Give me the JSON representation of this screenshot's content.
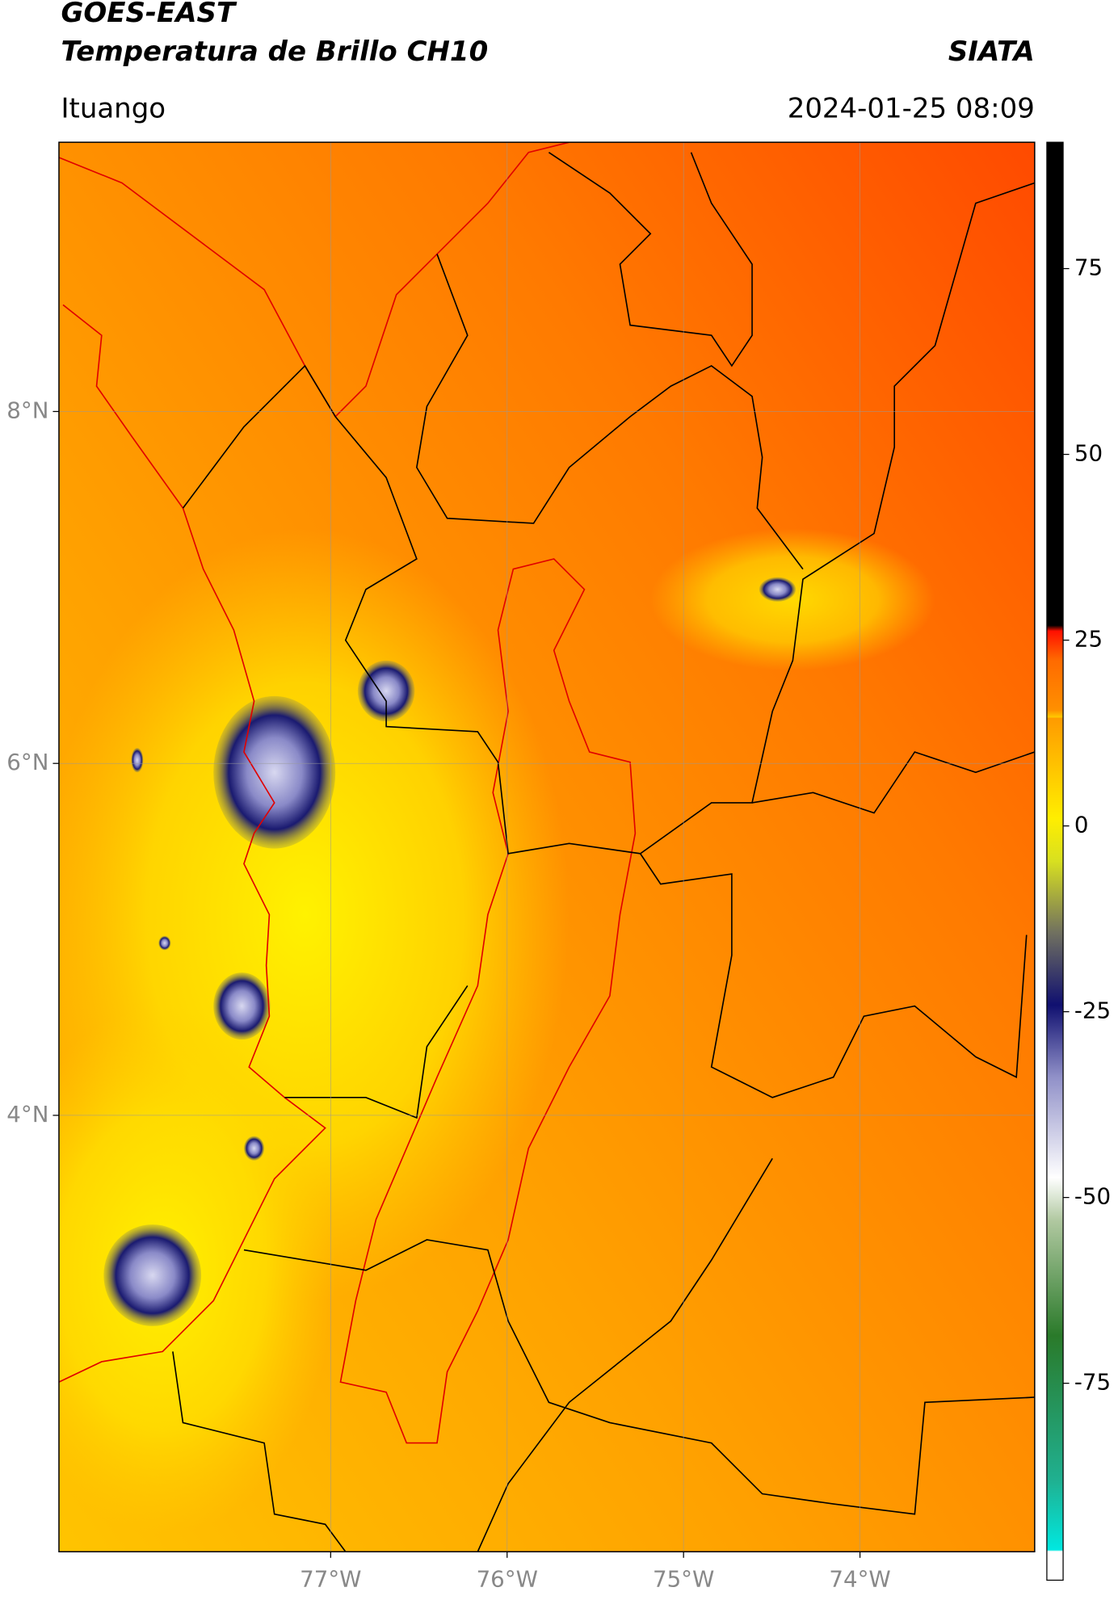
{
  "header": {
    "title": "GOES-EAST",
    "subtitle": "Temperatura de Brillo CH10",
    "source": "SIATA",
    "location": "Ituango",
    "datetime": "2024-01-25 08:09"
  },
  "map": {
    "lonlim": [
      -78.54,
      -73.01
    ],
    "latlim": [
      1.52,
      9.53
    ],
    "lon_ticks": [
      {
        "value": -77,
        "label": "77°W"
      },
      {
        "value": -76,
        "label": "76°W"
      },
      {
        "value": -75,
        "label": "75°W"
      },
      {
        "value": -74,
        "label": "74°W"
      }
    ],
    "lat_ticks": [
      {
        "value": 8,
        "label": "8°N"
      },
      {
        "value": 6,
        "label": "6°N"
      },
      {
        "value": 4,
        "label": "4°N"
      }
    ]
  },
  "colorbar": {
    "lim": [
      -101.5,
      92
    ],
    "ticks": [
      75,
      50,
      25,
      0,
      -25,
      -50,
      -75
    ]
  }
}
